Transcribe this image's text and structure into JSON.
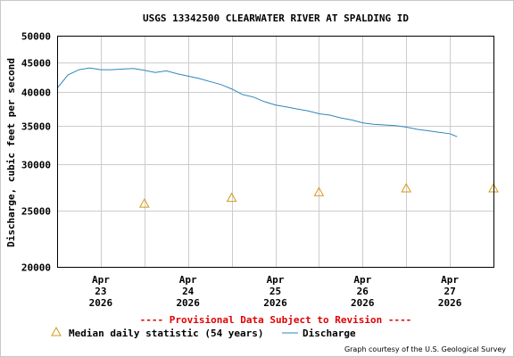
{
  "chart_data": {
    "type": "line",
    "title": "USGS 13342500 CLEARWATER RIVER AT SPALDING ID",
    "ylabel": "Discharge, cubic feet per second",
    "xlabel": "",
    "y_scale": "log",
    "ylim": [
      20000,
      50000
    ],
    "y_ticks": [
      "20000",
      "25000",
      "30000",
      "35000",
      "40000",
      "45000",
      "50000"
    ],
    "x_ticks": [
      {
        "line1": "Apr",
        "line2": "23",
        "line3": "2026"
      },
      {
        "line1": "Apr",
        "line2": "24",
        "line3": "2026"
      },
      {
        "line1": "Apr",
        "line2": "25",
        "line3": "2026"
      },
      {
        "line1": "Apr",
        "line2": "26",
        "line3": "2026"
      },
      {
        "line1": "Apr",
        "line2": "27",
        "line3": "2026"
      }
    ],
    "grid": true,
    "series": [
      {
        "name": "Discharge",
        "kind": "line",
        "color": "#2e87bb",
        "x": [
          "2026-04-22 12:00",
          "2026-04-22 15:00",
          "2026-04-22 18:00",
          "2026-04-22 21:00",
          "2026-04-23 00:00",
          "2026-04-23 03:00",
          "2026-04-23 06:00",
          "2026-04-23 09:00",
          "2026-04-23 12:00",
          "2026-04-23 15:00",
          "2026-04-23 18:00",
          "2026-04-23 21:00",
          "2026-04-24 00:00",
          "2026-04-24 03:00",
          "2026-04-24 06:00",
          "2026-04-24 09:00",
          "2026-04-24 12:00",
          "2026-04-24 15:00",
          "2026-04-24 18:00",
          "2026-04-24 21:00",
          "2026-04-25 00:00",
          "2026-04-25 03:00",
          "2026-04-25 06:00",
          "2026-04-25 09:00",
          "2026-04-25 12:00",
          "2026-04-25 15:00",
          "2026-04-25 18:00",
          "2026-04-25 21:00",
          "2026-04-26 00:00",
          "2026-04-26 03:00",
          "2026-04-26 06:00",
          "2026-04-26 09:00",
          "2026-04-26 12:00",
          "2026-04-26 15:00",
          "2026-04-26 18:00",
          "2026-04-26 21:00",
          "2026-04-27 00:00",
          "2026-04-27 02:00"
        ],
        "values": [
          40600,
          42800,
          43700,
          44000,
          43700,
          43700,
          43800,
          43900,
          43600,
          43200,
          43500,
          43000,
          42600,
          42200,
          41700,
          41200,
          40500,
          39600,
          39200,
          38500,
          38000,
          37700,
          37400,
          37100,
          36700,
          36500,
          36100,
          35800,
          35400,
          35200,
          35100,
          35000,
          34800,
          34500,
          34300,
          34100,
          33900,
          33500
        ]
      },
      {
        "name": "Median daily statistic (54 years)",
        "kind": "marker",
        "color": "#d39a18",
        "x": [
          "2026-04-23 12:00",
          "2026-04-24 12:00",
          "2026-04-25 12:00",
          "2026-04-26 12:00",
          "2026-04-27 12:00"
        ],
        "values": [
          25700,
          26300,
          26900,
          27300,
          27300
        ]
      }
    ],
    "legend_placement": "bottom",
    "provisional_note": "---- Provisional Data Subject to Revision ----",
    "credit": "Graph courtesy of the U.S. Geological Survey"
  },
  "colors": {
    "grid": "#cccccc",
    "frame": "#000000",
    "provisional": "#e00000",
    "background": "#ffffff"
  }
}
